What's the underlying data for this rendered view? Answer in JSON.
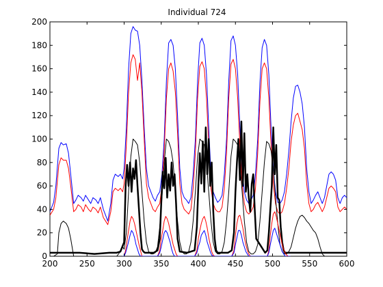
{
  "chart_data": {
    "type": "line",
    "title": "Individual 724",
    "xlabel": "",
    "ylabel": "",
    "xlim": [
      200,
      600
    ],
    "ylim": [
      0,
      200
    ],
    "grid": false,
    "xticks": [
      200,
      250,
      300,
      350,
      400,
      450,
      500,
      550,
      600
    ],
    "yticks": [
      0,
      20,
      40,
      60,
      80,
      100,
      120,
      140,
      160,
      180,
      200
    ],
    "series": [
      {
        "color": "#0000ff",
        "width": 1,
        "x": [
          200,
          205,
          208,
          212,
          215,
          218,
          222,
          225,
          228,
          232,
          235,
          238,
          242,
          245,
          248,
          252,
          255,
          258,
          262,
          265,
          268,
          272,
          275,
          278,
          282,
          285,
          288,
          292,
          295,
          298,
          300,
          303,
          306,
          309,
          312,
          315,
          318,
          321,
          324,
          327,
          330,
          333,
          336,
          339,
          342,
          345,
          348,
          351,
          354,
          357,
          360,
          363,
          366,
          369,
          372,
          375,
          378,
          381,
          384,
          387,
          390,
          393,
          396,
          399,
          402,
          405,
          408,
          411,
          414,
          417,
          420,
          423,
          426,
          429,
          432,
          435,
          438,
          441,
          444,
          447,
          450,
          453,
          456,
          459,
          462,
          465,
          468,
          471,
          474,
          477,
          480,
          483,
          486,
          489,
          492,
          495,
          498,
          501,
          504,
          507,
          510,
          513,
          516,
          519,
          522,
          525,
          528,
          531,
          534,
          537,
          540,
          543,
          546,
          549,
          552,
          555,
          558,
          561,
          564,
          567,
          570,
          573,
          576,
          579,
          582,
          585,
          588,
          591,
          594,
          597,
          600
        ],
        "y": [
          38,
          46,
          60,
          92,
          97,
          95,
          96,
          88,
          70,
          45,
          48,
          52,
          50,
          47,
          52,
          48,
          45,
          50,
          48,
          45,
          50,
          40,
          35,
          30,
          45,
          65,
          70,
          68,
          70,
          66,
          75,
          110,
          160,
          190,
          196,
          193,
          192,
          180,
          150,
          110,
          75,
          60,
          55,
          50,
          47,
          52,
          55,
          70,
          100,
          150,
          182,
          185,
          180,
          160,
          120,
          75,
          55,
          50,
          48,
          45,
          50,
          70,
          100,
          150,
          182,
          186,
          180,
          155,
          110,
          70,
          55,
          50,
          46,
          48,
          52,
          70,
          100,
          150,
          184,
          188,
          180,
          155,
          110,
          75,
          55,
          48,
          45,
          48,
          52,
          70,
          100,
          148,
          178,
          185,
          180,
          155,
          110,
          75,
          55,
          46,
          45,
          48,
          55,
          70,
          90,
          115,
          135,
          145,
          146,
          140,
          130,
          110,
          75,
          55,
          45,
          48,
          52,
          55,
          50,
          45,
          50,
          60,
          70,
          72,
          70,
          65,
          50,
          45,
          50,
          52,
          50
        ]
      },
      {
        "color": "#ff0000",
        "width": 1,
        "x": [
          200,
          205,
          208,
          212,
          215,
          218,
          222,
          225,
          228,
          232,
          235,
          238,
          242,
          245,
          248,
          252,
          255,
          258,
          262,
          265,
          268,
          272,
          275,
          278,
          282,
          285,
          288,
          292,
          295,
          298,
          300,
          303,
          306,
          309,
          312,
          315,
          318,
          321,
          324,
          327,
          330,
          333,
          336,
          339,
          342,
          345,
          348,
          351,
          354,
          357,
          360,
          363,
          366,
          369,
          372,
          375,
          378,
          381,
          384,
          387,
          390,
          393,
          396,
          399,
          402,
          405,
          408,
          411,
          414,
          417,
          420,
          423,
          426,
          429,
          432,
          435,
          438,
          441,
          444,
          447,
          450,
          453,
          456,
          459,
          462,
          465,
          468,
          471,
          474,
          477,
          480,
          483,
          486,
          489,
          492,
          495,
          498,
          501,
          504,
          507,
          510,
          513,
          516,
          519,
          522,
          525,
          528,
          531,
          534,
          537,
          540,
          543,
          546,
          549,
          552,
          555,
          558,
          561,
          564,
          567,
          570,
          573,
          576,
          579,
          582,
          585,
          588,
          591,
          594,
          597,
          600
        ],
        "y": [
          35,
          40,
          50,
          78,
          84,
          82,
          82,
          75,
          60,
          38,
          40,
          44,
          42,
          38,
          44,
          40,
          38,
          42,
          40,
          37,
          42,
          33,
          30,
          27,
          38,
          55,
          58,
          56,
          58,
          55,
          62,
          95,
          140,
          165,
          172,
          168,
          150,
          165,
          140,
          100,
          62,
          50,
          45,
          40,
          38,
          42,
          45,
          60,
          90,
          135,
          160,
          165,
          158,
          140,
          105,
          62,
          45,
          40,
          38,
          36,
          40,
          58,
          88,
          135,
          162,
          166,
          160,
          135,
          95,
          58,
          45,
          40,
          38,
          38,
          42,
          58,
          88,
          135,
          164,
          168,
          160,
          135,
          95,
          62,
          45,
          38,
          36,
          38,
          42,
          58,
          88,
          132,
          160,
          165,
          160,
          135,
          95,
          62,
          45,
          38,
          36,
          38,
          45,
          58,
          75,
          98,
          112,
          120,
          122,
          115,
          108,
          92,
          62,
          45,
          38,
          40,
          44,
          46,
          42,
          38,
          42,
          50,
          58,
          60,
          58,
          55,
          42,
          38,
          40,
          42,
          40
        ]
      },
      {
        "color": "#000000",
        "width": 1,
        "x": [
          200,
          205,
          210,
          212,
          215,
          218,
          222,
          225,
          228,
          232,
          235,
          240,
          260,
          280,
          290,
          295,
          298,
          300,
          303,
          306,
          309,
          312,
          315,
          318,
          321,
          324,
          327,
          330,
          333,
          336,
          339,
          342,
          345,
          348,
          351,
          354,
          357,
          360,
          363,
          366,
          369,
          372,
          375,
          378,
          381,
          384,
          387,
          390,
          393,
          396,
          399,
          402,
          405,
          408,
          411,
          414,
          417,
          420,
          423,
          426,
          429,
          432,
          435,
          438,
          441,
          444,
          447,
          450,
          453,
          456,
          459,
          462,
          465,
          468,
          471,
          474,
          477,
          480,
          483,
          486,
          489,
          492,
          495,
          498,
          501,
          504,
          507,
          510,
          513,
          516,
          519,
          522,
          525,
          528,
          531,
          534,
          537,
          540,
          543,
          546,
          549,
          552,
          555,
          558,
          561,
          564,
          567,
          570,
          573,
          580,
          600
        ],
        "y": [
          0,
          0,
          2,
          20,
          28,
          30,
          28,
          24,
          15,
          0,
          0,
          0,
          0,
          0,
          0,
          4,
          8,
          6,
          20,
          55,
          85,
          100,
          98,
          95,
          80,
          55,
          30,
          12,
          4,
          2,
          2,
          3,
          8,
          25,
          50,
          80,
          100,
          98,
          92,
          80,
          55,
          30,
          12,
          4,
          2,
          2,
          4,
          12,
          30,
          55,
          85,
          100,
          98,
          95,
          80,
          55,
          30,
          12,
          4,
          2,
          2,
          4,
          12,
          30,
          55,
          85,
          100,
          98,
          95,
          80,
          55,
          30,
          12,
          4,
          2,
          2,
          4,
          10,
          30,
          55,
          80,
          98,
          96,
          90,
          75,
          50,
          28,
          10,
          4,
          2,
          2,
          4,
          8,
          16,
          24,
          30,
          34,
          35,
          33,
          30,
          28,
          25,
          22,
          20,
          15,
          8,
          2,
          0,
          0,
          0,
          0
        ]
      },
      {
        "color": "#000000",
        "width": 2.5,
        "x": [
          200,
          220,
          240,
          260,
          280,
          290,
          295,
          300,
          302,
          304,
          306,
          308,
          310,
          312,
          314,
          316,
          318,
          320,
          322,
          324,
          326,
          328,
          330,
          340,
          345,
          348,
          350,
          352,
          354,
          356,
          358,
          360,
          362,
          364,
          366,
          368,
          370,
          372,
          375,
          385,
          395,
          398,
          400,
          402,
          404,
          406,
          408,
          410,
          412,
          414,
          416,
          418,
          420,
          422,
          424,
          426,
          428,
          440,
          445,
          448,
          450,
          452,
          454,
          456,
          458,
          460,
          462,
          464,
          466,
          468,
          470,
          472,
          474,
          476,
          478,
          490,
          493,
          495,
          497,
          499,
          501,
          503,
          505,
          507,
          509,
          511,
          513,
          515,
          517,
          519,
          521,
          525,
          540,
          560,
          580,
          600
        ],
        "y": [
          3,
          3,
          3,
          2,
          3,
          3,
          4,
          12,
          60,
          78,
          60,
          80,
          55,
          75,
          66,
          82,
          60,
          40,
          20,
          6,
          4,
          3,
          3,
          3,
          5,
          15,
          45,
          72,
          58,
          84,
          50,
          70,
          56,
          80,
          60,
          70,
          45,
          15,
          4,
          3,
          5,
          25,
          60,
          88,
          62,
          98,
          55,
          110,
          70,
          100,
          60,
          80,
          40,
          15,
          5,
          3,
          3,
          3,
          5,
          20,
          55,
          80,
          100,
          65,
          115,
          60,
          105,
          55,
          70,
          50,
          38,
          62,
          70,
          40,
          15,
          3,
          5,
          20,
          40,
          60,
          110,
          70,
          95,
          50,
          48,
          25,
          12,
          5,
          3,
          3,
          3,
          3,
          3,
          3,
          3,
          3
        ]
      },
      {
        "color": "#ff0000",
        "width": 1,
        "x": [
          298,
          300,
          302,
          305,
          308,
          310,
          312,
          314,
          316,
          318,
          320,
          322,
          324,
          330,
          340,
          345,
          348,
          350,
          352,
          354,
          356,
          358,
          360,
          362,
          364,
          366,
          368,
          370,
          372,
          375,
          385,
          395,
          398,
          400,
          402,
          404,
          406,
          408,
          410,
          412,
          414,
          416,
          418,
          420,
          422,
          424,
          426,
          428,
          440,
          445,
          448,
          450,
          452,
          454,
          456,
          458,
          460,
          462,
          464,
          466,
          468,
          470,
          472,
          474,
          476,
          478,
          490,
          493,
          495,
          497,
          499,
          501,
          503,
          505,
          507,
          509,
          511,
          513,
          515,
          517,
          519,
          521,
          524
        ],
        "y": [
          0,
          0,
          5,
          18,
          30,
          34,
          32,
          28,
          22,
          16,
          10,
          5,
          0,
          0,
          0,
          0,
          5,
          15,
          22,
          30,
          34,
          32,
          28,
          22,
          16,
          10,
          6,
          2,
          0,
          0,
          0,
          0,
          5,
          15,
          22,
          28,
          32,
          34,
          30,
          24,
          16,
          10,
          4,
          1,
          0,
          0,
          0,
          0,
          0,
          0,
          5,
          18,
          28,
          34,
          35,
          30,
          24,
          16,
          10,
          5,
          2,
          0,
          0,
          0,
          0,
          0,
          0,
          0,
          5,
          18,
          28,
          36,
          38,
          34,
          28,
          22,
          16,
          10,
          6,
          3,
          1,
          0,
          0
        ]
      },
      {
        "color": "#0000ff",
        "width": 1,
        "x": [
          298,
          300,
          302,
          305,
          308,
          310,
          312,
          314,
          316,
          318,
          320,
          322,
          324,
          330,
          340,
          345,
          348,
          350,
          352,
          354,
          356,
          358,
          360,
          362,
          364,
          366,
          368,
          370,
          372,
          375,
          385,
          395,
          398,
          400,
          402,
          404,
          406,
          408,
          410,
          412,
          414,
          416,
          418,
          420,
          422,
          424,
          426,
          428,
          440,
          445,
          448,
          450,
          452,
          454,
          456,
          458,
          460,
          462,
          464,
          466,
          468,
          470,
          472,
          474,
          476,
          478,
          490,
          493,
          495,
          497,
          499,
          501,
          503,
          505,
          507,
          509,
          511,
          513,
          515,
          517,
          519,
          521,
          524
        ],
        "y": [
          0,
          0,
          3,
          10,
          18,
          22,
          20,
          16,
          10,
          6,
          2,
          0,
          0,
          0,
          0,
          0,
          3,
          8,
          14,
          20,
          22,
          20,
          16,
          12,
          6,
          2,
          0,
          0,
          0,
          0,
          0,
          0,
          3,
          8,
          12,
          18,
          20,
          22,
          18,
          12,
          8,
          4,
          1,
          0,
          0,
          0,
          0,
          0,
          0,
          0,
          3,
          10,
          16,
          22,
          22,
          18,
          12,
          8,
          4,
          2,
          0,
          0,
          0,
          0,
          0,
          0,
          0,
          0,
          3,
          10,
          16,
          22,
          24,
          20,
          16,
          12,
          8,
          4,
          2,
          0,
          0,
          0,
          0
        ]
      }
    ]
  }
}
